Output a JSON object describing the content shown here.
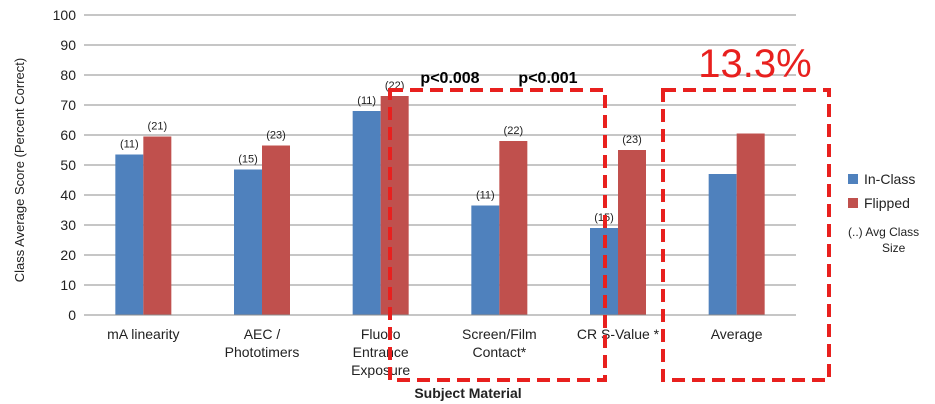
{
  "chart_data": {
    "type": "bar",
    "ylabel": "Class Average Score (Percent Correct)",
    "xlabel": "Subject Material",
    "ylim": [
      0,
      100
    ],
    "yticks": [
      0,
      10,
      20,
      30,
      40,
      50,
      60,
      70,
      80,
      90,
      100
    ],
    "grid": true,
    "legend_position": "right",
    "categories": [
      [
        "mA linearity"
      ],
      [
        "AEC /",
        "Phototimers"
      ],
      [
        "Fluoro",
        "Entrance",
        "Exposure"
      ],
      [
        "Screen/Film",
        "Contact*"
      ],
      [
        "CR S-Value *"
      ],
      [
        "Average"
      ]
    ],
    "series": [
      {
        "name": "In-Class",
        "color": "#4f81bd",
        "values": [
          53.5,
          48.5,
          68,
          36.5,
          29,
          47
        ],
        "labels": [
          "(11)",
          "(15)",
          "(11)",
          "(11)",
          "(15)",
          ""
        ]
      },
      {
        "name": "Flipped",
        "color": "#c0504d",
        "values": [
          59.5,
          56.5,
          73,
          58,
          55,
          60.5
        ],
        "labels": [
          "(21)",
          "(23)",
          "(22)",
          "(22)",
          "(23)",
          ""
        ]
      }
    ],
    "legend_note": [
      "(..) Avg Class",
      "Size"
    ],
    "annotations": {
      "pvalues": [
        "p<0.008",
        "p<0.001"
      ],
      "improvement": "13.3%",
      "highlight_color": "#e8201e"
    }
  }
}
